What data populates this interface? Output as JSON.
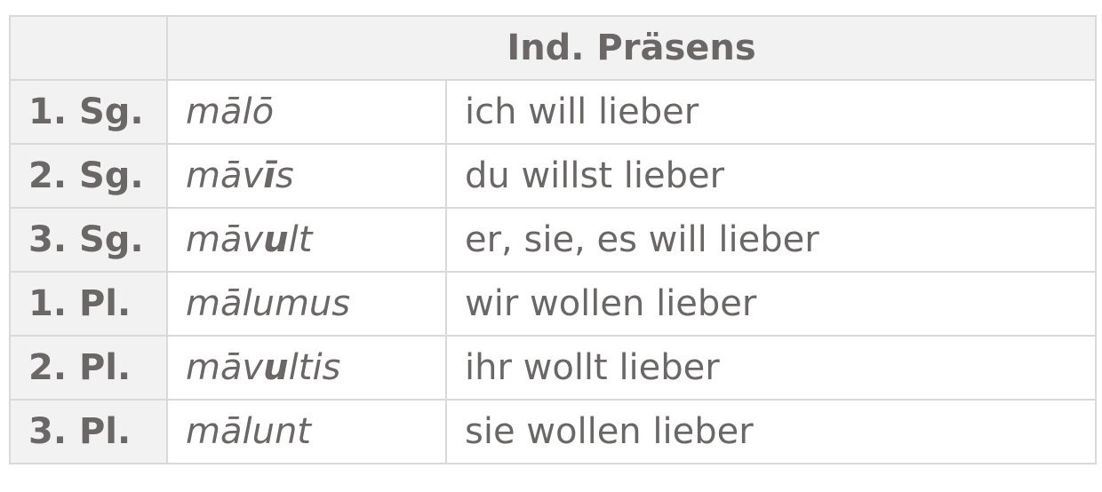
{
  "header": {
    "corner": "",
    "title": "Ind. Präsens"
  },
  "rows": [
    {
      "person": "1. Sg.",
      "latin": {
        "pre": "mālō",
        "bold": "",
        "post": ""
      },
      "german": "ich will lieber"
    },
    {
      "person": "2. Sg.",
      "latin": {
        "pre": "māv",
        "bold": "ī",
        "post": "s"
      },
      "german": "du willst lieber"
    },
    {
      "person": "3. Sg.",
      "latin": {
        "pre": "māv",
        "bold": "u",
        "post": "lt"
      },
      "german": "er, sie, es will lieber"
    },
    {
      "person": "1. Pl.",
      "latin": {
        "pre": "mālumus",
        "bold": "",
        "post": ""
      },
      "german": "wir wollen lieber"
    },
    {
      "person": "2. Pl.",
      "latin": {
        "pre": "māv",
        "bold": "u",
        "post": "ltis"
      },
      "german": "ihr wollt lieber"
    },
    {
      "person": "3. Pl.",
      "latin": {
        "pre": "mālunt",
        "bold": "",
        "post": ""
      },
      "german": "sie wollen lieber"
    }
  ]
}
